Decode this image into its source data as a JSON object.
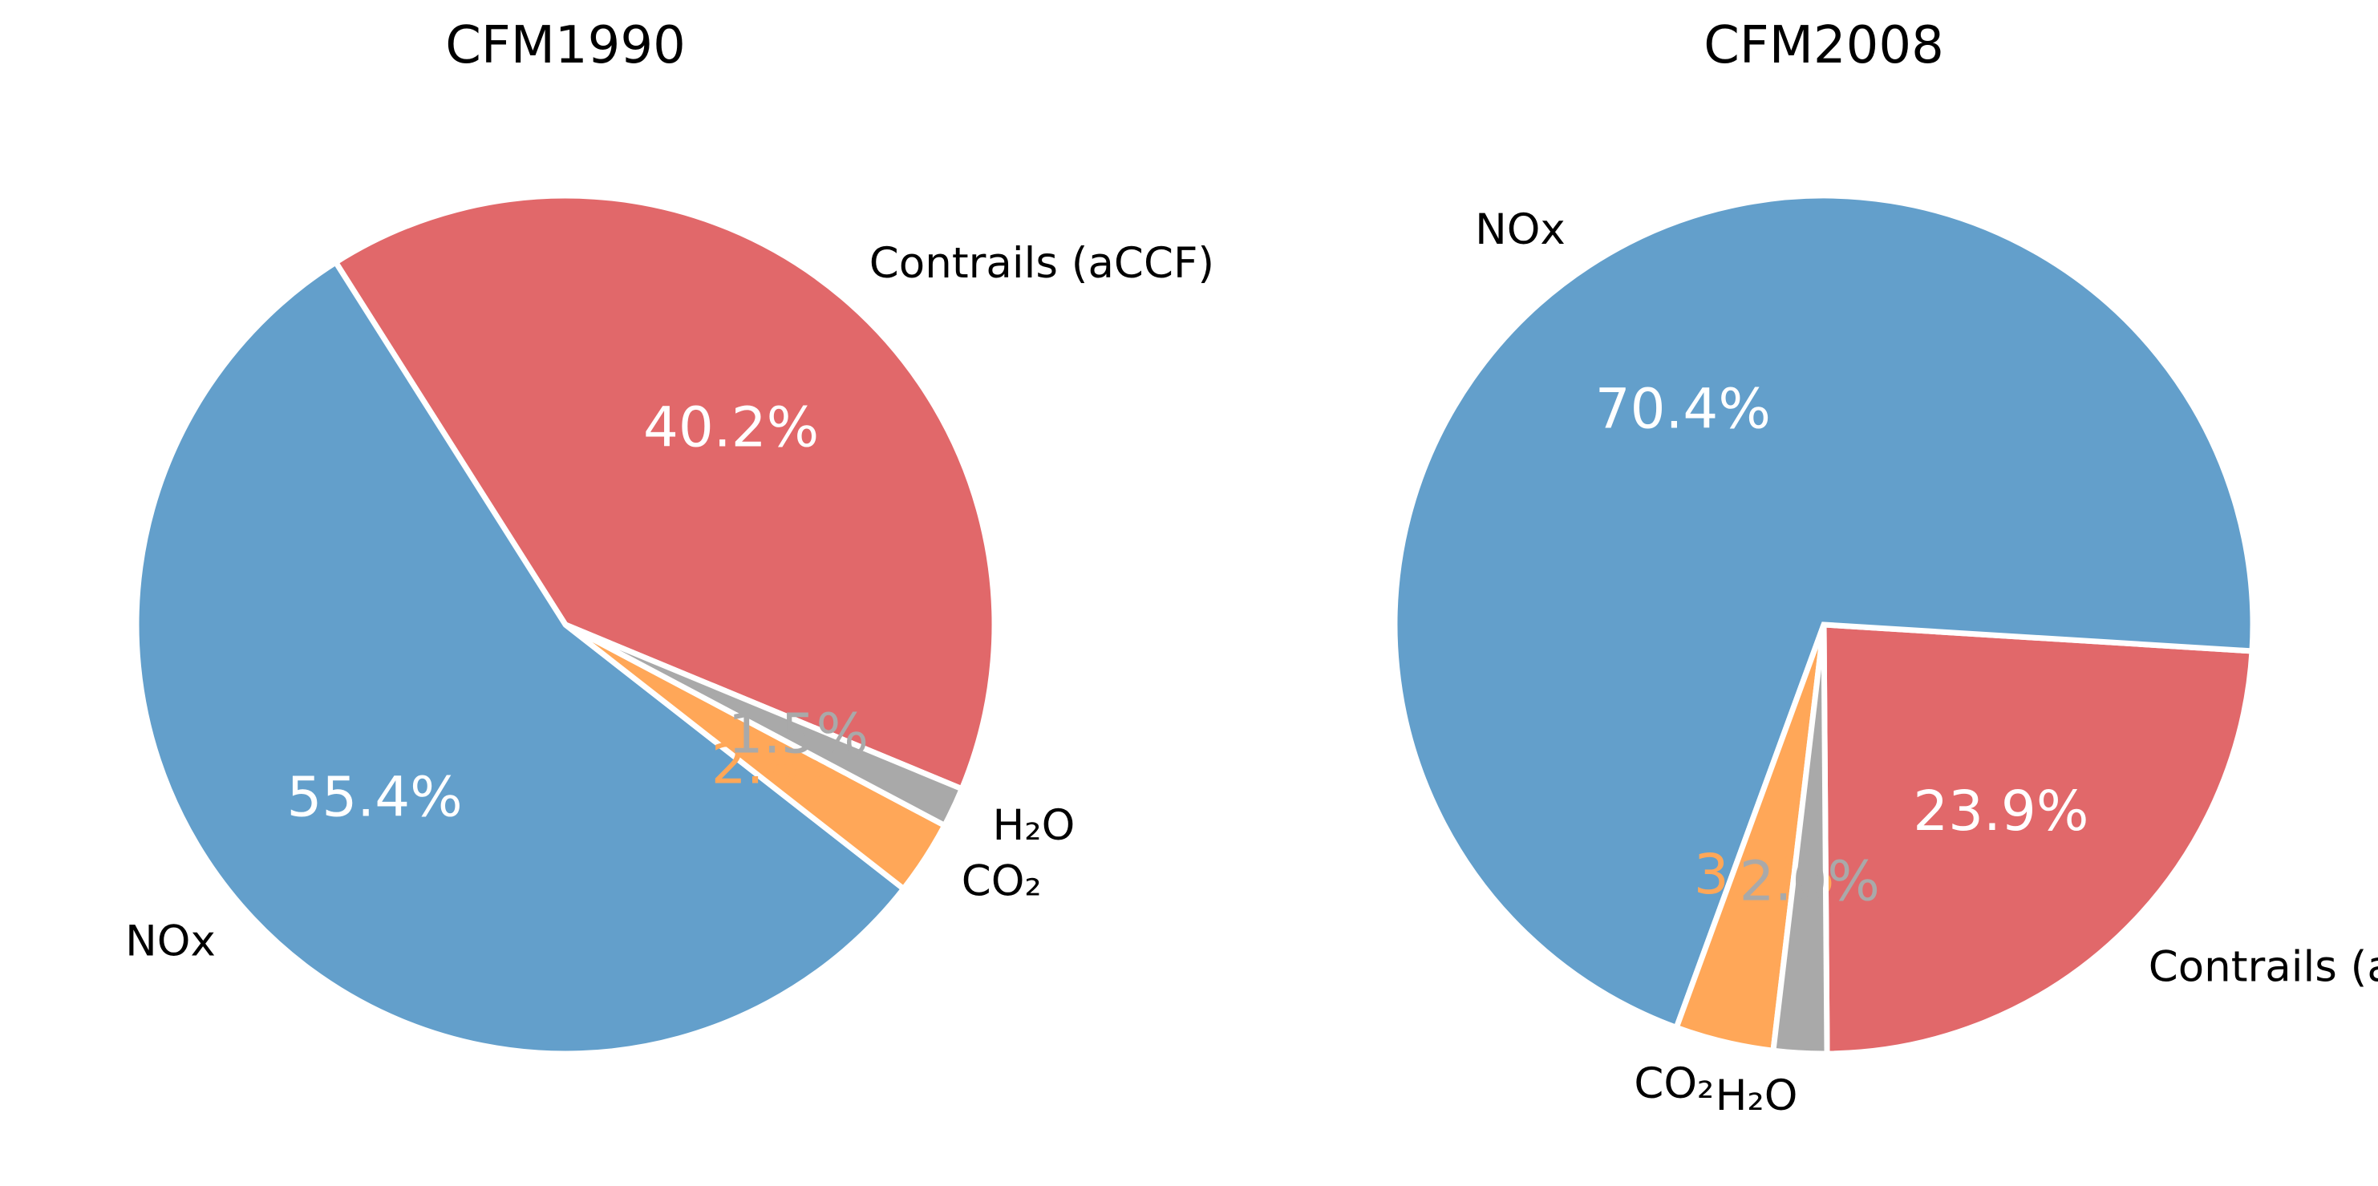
{
  "chart_data": [
    {
      "type": "pie",
      "title": "CFM1990",
      "slices": [
        {
          "label": "Contrails (aCCF)",
          "value": 40.2,
          "pct_label": "40.2%",
          "color": "#e1686a",
          "pct_color": "#ffffff"
        },
        {
          "label": "NOx",
          "value": 55.4,
          "pct_label": "55.4%",
          "color": "#639fcb",
          "pct_color": "#ffffff"
        },
        {
          "label": "CO₂",
          "value": 2.8,
          "pct_label": "2.8%",
          "color": "#ffa758",
          "pct_color": "#ffa758"
        },
        {
          "label": "H₂O",
          "value": 1.5,
          "pct_label": "1.5%",
          "color": "#a9a9a9",
          "pct_color": "#a9a9a9"
        }
      ]
    },
    {
      "type": "pie",
      "title": "CFM2008",
      "slices": [
        {
          "label": "Contrails (aCCF)",
          "value": 23.9,
          "pct_label": "23.9%",
          "color": "#e1686a",
          "pct_color": "#ffffff"
        },
        {
          "label": "NOx",
          "value": 70.4,
          "pct_label": "70.4%",
          "color": "#639fcb",
          "pct_color": "#ffffff"
        },
        {
          "label": "CO₂",
          "value": 3.7,
          "pct_label": "3.7%",
          "color": "#ffa758",
          "pct_color": "#ffa758"
        },
        {
          "label": "H₂O",
          "value": 2.0,
          "pct_label": "2.0%",
          "color": "#a9a9a9",
          "pct_color": "#a9a9a9"
        }
      ]
    }
  ]
}
